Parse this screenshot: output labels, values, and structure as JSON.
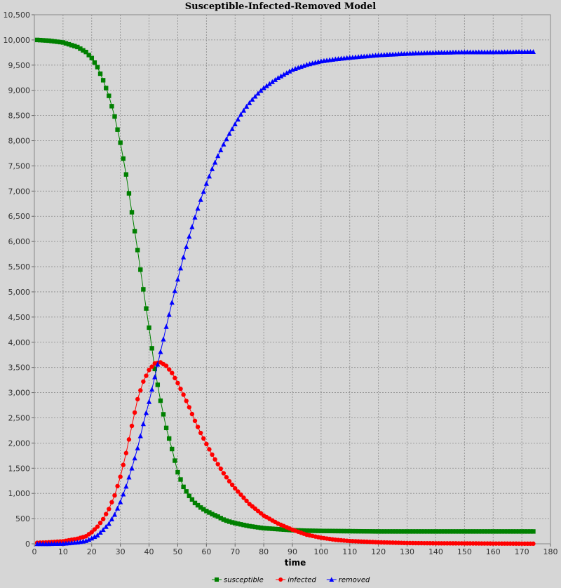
{
  "chart_data": {
    "type": "line",
    "title": "Susceptible-Infected-Removed Model",
    "xlabel": "time",
    "ylabel": "",
    "xlim": [
      0,
      180
    ],
    "ylim": [
      0,
      10500
    ],
    "x_ticks": [
      0,
      10,
      20,
      30,
      40,
      50,
      60,
      70,
      80,
      90,
      100,
      110,
      120,
      130,
      140,
      150,
      160,
      170,
      180
    ],
    "y_ticks": [
      0,
      500,
      1000,
      1500,
      2000,
      2500,
      3000,
      3500,
      4000,
      4500,
      5000,
      5500,
      6000,
      6500,
      7000,
      7500,
      8000,
      8500,
      9000,
      9500,
      10000,
      10500
    ],
    "grid": true,
    "legend_position": "bottom",
    "series": [
      {
        "name": "susceptible",
        "color": "#008000",
        "marker": "square",
        "x": [
          1,
          5,
          10,
          15,
          18,
          20,
          22,
          24,
          26,
          28,
          30,
          32,
          34,
          36,
          38,
          40,
          42,
          44,
          46,
          48,
          50,
          52,
          54,
          56,
          58,
          60,
          62,
          64,
          66,
          68,
          70,
          75,
          80,
          85,
          90,
          95,
          100,
          110,
          120,
          130,
          140,
          150,
          160,
          170,
          174
        ],
        "y": [
          10000,
          9985,
          9950,
          9860,
          9760,
          9640,
          9460,
          9200,
          8890,
          8480,
          7960,
          7330,
          6580,
          5830,
          5050,
          4290,
          3470,
          2840,
          2300,
          1880,
          1420,
          1130,
          950,
          810,
          720,
          650,
          590,
          540,
          480,
          440,
          410,
          350,
          310,
          290,
          270,
          260,
          255,
          250,
          245,
          245,
          245,
          245,
          245,
          245,
          245
        ]
      },
      {
        "name": "infected",
        "color": "#ff0000",
        "marker": "circle",
        "x": [
          1,
          5,
          10,
          15,
          18,
          20,
          22,
          24,
          26,
          28,
          30,
          32,
          34,
          36,
          38,
          40,
          42,
          44,
          46,
          48,
          50,
          52,
          54,
          56,
          58,
          60,
          62,
          64,
          66,
          68,
          70,
          75,
          80,
          85,
          90,
          95,
          100,
          105,
          110,
          120,
          130,
          140,
          150,
          160,
          170,
          174
        ],
        "y": [
          20,
          30,
          50,
          100,
          150,
          230,
          340,
          490,
          690,
          960,
          1330,
          1800,
          2340,
          2870,
          3220,
          3450,
          3580,
          3600,
          3530,
          3390,
          3190,
          2960,
          2710,
          2440,
          2200,
          1980,
          1770,
          1580,
          1400,
          1240,
          1100,
          790,
          560,
          400,
          280,
          180,
          120,
          80,
          55,
          30,
          15,
          10,
          8,
          5,
          3,
          2
        ]
      },
      {
        "name": "removed",
        "color": "#0000ff",
        "marker": "triangle",
        "x": [
          1,
          5,
          10,
          15,
          18,
          20,
          22,
          24,
          26,
          28,
          30,
          32,
          34,
          36,
          38,
          40,
          42,
          44,
          46,
          48,
          50,
          52,
          54,
          56,
          58,
          60,
          62,
          64,
          66,
          68,
          70,
          72,
          74,
          76,
          78,
          80,
          85,
          90,
          95,
          100,
          105,
          110,
          120,
          130,
          140,
          150,
          160,
          170,
          174
        ],
        "y": [
          0,
          0,
          5,
          30,
          60,
          110,
          170,
          280,
          400,
          580,
          830,
          1140,
          1500,
          1900,
          2380,
          2820,
          3310,
          3810,
          4310,
          4790,
          5250,
          5690,
          6100,
          6480,
          6830,
          7150,
          7440,
          7700,
          7930,
          8140,
          8330,
          8520,
          8680,
          8820,
          8940,
          9050,
          9250,
          9410,
          9510,
          9580,
          9620,
          9650,
          9700,
          9730,
          9750,
          9760,
          9760,
          9765,
          9765
        ]
      }
    ]
  }
}
